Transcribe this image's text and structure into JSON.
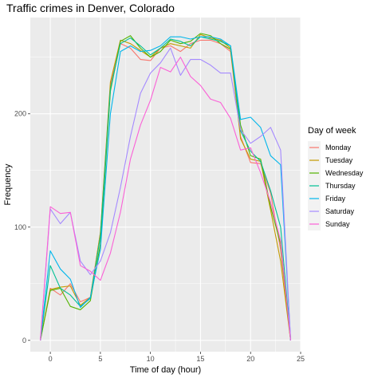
{
  "chart_data": {
    "type": "line",
    "title": "Traffic crimes in Denver, Colorado",
    "xlabel": "Time of day (hour)",
    "ylabel": "Frequency",
    "xlim": [
      -2,
      25
    ],
    "ylim": [
      -10,
      285
    ],
    "x_ticks": [
      0,
      5,
      10,
      15,
      20,
      25
    ],
    "y_ticks": [
      0,
      100,
      200
    ],
    "grid": true,
    "legend_position": "right",
    "legend_title": "Day of week",
    "x": [
      -1,
      0,
      1,
      2,
      3,
      4,
      5,
      6,
      7,
      8,
      9,
      10,
      11,
      12,
      13,
      14,
      15,
      16,
      17,
      18,
      19,
      20,
      21,
      22,
      23,
      24
    ],
    "series": [
      {
        "name": "Monday",
        "color": "#F8766D",
        "values": [
          0,
          46,
          40,
          50,
          34,
          38,
          95,
          225,
          262,
          258,
          248,
          247,
          258,
          260,
          255,
          262,
          265,
          265,
          262,
          255,
          180,
          157,
          156,
          130,
          80,
          0
        ]
      },
      {
        "name": "Tuesday",
        "color": "#C49A00",
        "values": [
          0,
          45,
          47,
          48,
          31,
          38,
          95,
          228,
          265,
          262,
          256,
          250,
          258,
          262,
          260,
          258,
          270,
          267,
          265,
          258,
          178,
          160,
          158,
          115,
          70,
          0
        ]
      },
      {
        "name": "Wednesday",
        "color": "#53B400",
        "values": [
          0,
          44,
          46,
          30,
          27,
          35,
          85,
          220,
          264,
          269,
          258,
          250,
          255,
          265,
          262,
          264,
          271,
          269,
          262,
          257,
          190,
          163,
          160,
          118,
          85,
          0
        ]
      },
      {
        "name": "Thursday",
        "color": "#00C094",
        "values": [
          0,
          66,
          46,
          40,
          30,
          37,
          92,
          222,
          262,
          267,
          260,
          252,
          258,
          266,
          264,
          260,
          268,
          266,
          264,
          260,
          185,
          167,
          158,
          132,
          100,
          0
        ]
      },
      {
        "name": "Friday",
        "color": "#00B6EB",
        "values": [
          0,
          79,
          63,
          54,
          29,
          38,
          80,
          200,
          255,
          260,
          255,
          256,
          260,
          268,
          268,
          266,
          268,
          268,
          266,
          260,
          195,
          197,
          188,
          163,
          155,
          0
        ]
      },
      {
        "name": "Saturday",
        "color": "#A58AFF",
        "values": [
          0,
          116,
          103,
          113,
          70,
          58,
          70,
          95,
          135,
          180,
          218,
          236,
          245,
          258,
          234,
          248,
          248,
          243,
          236,
          236,
          186,
          174,
          180,
          188,
          168,
          0
        ]
      },
      {
        "name": "Sunday",
        "color": "#FB61D7",
        "values": [
          0,
          118,
          112,
          113,
          66,
          61,
          53,
          77,
          113,
          160,
          190,
          212,
          241,
          237,
          250,
          233,
          225,
          213,
          210,
          196,
          168,
          170,
          148,
          122,
          88,
          0
        ]
      }
    ]
  }
}
